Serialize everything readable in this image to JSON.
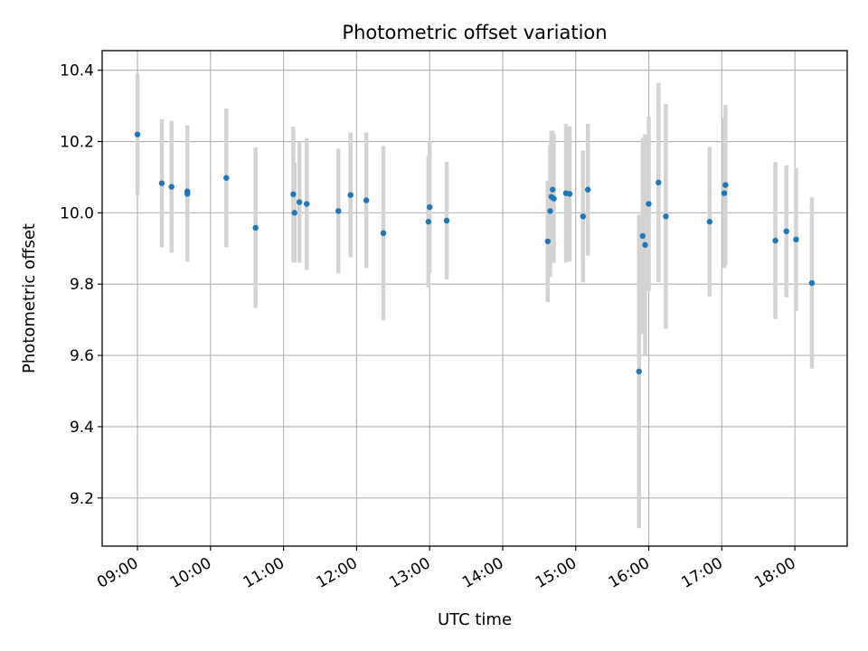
{
  "chart_data": {
    "type": "scatter",
    "title": "Photometric offset variation",
    "xlabel": "UTC time",
    "ylabel": "Photometric offset",
    "x_ticks": [
      "09:00",
      "10:00",
      "11:00",
      "12:00",
      "13:00",
      "14:00",
      "15:00",
      "16:00",
      "17:00",
      "18:00"
    ],
    "y_ticks": [
      "9.2",
      "9.4",
      "9.6",
      "9.8",
      "10.0",
      "10.2",
      "10.4"
    ],
    "xlim": [
      "08:31",
      "18:43"
    ],
    "ylim": [
      9.065,
      10.455
    ],
    "grid": true,
    "colors": {
      "point": "#1f77b4",
      "errorbar": "#d3d3d3",
      "grid": "#b0b0b0"
    },
    "series": [
      {
        "points": [
          {
            "x": "09:00",
            "y": 10.22,
            "err": 0.17
          },
          {
            "x": "09:20",
            "y": 10.083,
            "err": 0.18
          },
          {
            "x": "09:28",
            "y": 10.073,
            "err": 0.185
          },
          {
            "x": "09:41",
            "y": 10.053,
            "err": 0.19
          },
          {
            "x": "09:41",
            "y": 10.06,
            "err": 0.185
          },
          {
            "x": "10:13",
            "y": 10.098,
            "err": 0.195
          },
          {
            "x": "10:37",
            "y": 9.958,
            "err": 0.225
          },
          {
            "x": "11:08",
            "y": 10.052,
            "err": 0.19
          },
          {
            "x": "11:09",
            "y": 10.0,
            "err": 0.14
          },
          {
            "x": "11:13",
            "y": 10.03,
            "err": 0.17
          },
          {
            "x": "11:19",
            "y": 10.025,
            "err": 0.185
          },
          {
            "x": "11:45",
            "y": 10.005,
            "err": 0.175
          },
          {
            "x": "11:55",
            "y": 10.05,
            "err": 0.175
          },
          {
            "x": "12:08",
            "y": 10.035,
            "err": 0.19
          },
          {
            "x": "12:22",
            "y": 9.943,
            "err": 0.245
          },
          {
            "x": "12:59",
            "y": 9.975,
            "err": 0.185
          },
          {
            "x": "13:00",
            "y": 10.016,
            "err": 0.185
          },
          {
            "x": "13:14",
            "y": 9.978,
            "err": 0.165
          },
          {
            "x": "14:37",
            "y": 9.92,
            "err": 0.17
          },
          {
            "x": "14:39",
            "y": 10.005,
            "err": 0.185
          },
          {
            "x": "14:40",
            "y": 10.045,
            "err": 0.185
          },
          {
            "x": "14:41",
            "y": 10.065,
            "err": 0.165
          },
          {
            "x": "14:42",
            "y": 10.04,
            "err": 0.18
          },
          {
            "x": "14:52",
            "y": 10.055,
            "err": 0.195
          },
          {
            "x": "14:55",
            "y": 10.053,
            "err": 0.19
          },
          {
            "x": "15:06",
            "y": 9.99,
            "err": 0.185
          },
          {
            "x": "15:10",
            "y": 10.065,
            "err": 0.185
          },
          {
            "x": "15:52",
            "y": 9.555,
            "err": 0.44
          },
          {
            "x": "15:55",
            "y": 9.935,
            "err": 0.275
          },
          {
            "x": "15:57",
            "y": 9.91,
            "err": 0.31
          },
          {
            "x": "16:00",
            "y": 10.025,
            "err": 0.245
          },
          {
            "x": "16:08",
            "y": 10.085,
            "err": 0.28
          },
          {
            "x": "16:14",
            "y": 9.99,
            "err": 0.315
          },
          {
            "x": "16:50",
            "y": 9.975,
            "err": 0.21
          },
          {
            "x": "17:02",
            "y": 10.055,
            "err": 0.21
          },
          {
            "x": "17:03",
            "y": 10.078,
            "err": 0.225
          },
          {
            "x": "17:44",
            "y": 9.922,
            "err": 0.22
          },
          {
            "x": "17:53",
            "y": 9.948,
            "err": 0.185
          },
          {
            "x": "18:01",
            "y": 9.925,
            "err": 0.2
          },
          {
            "x": "18:14",
            "y": 9.803,
            "err": 0.24
          }
        ]
      }
    ]
  }
}
